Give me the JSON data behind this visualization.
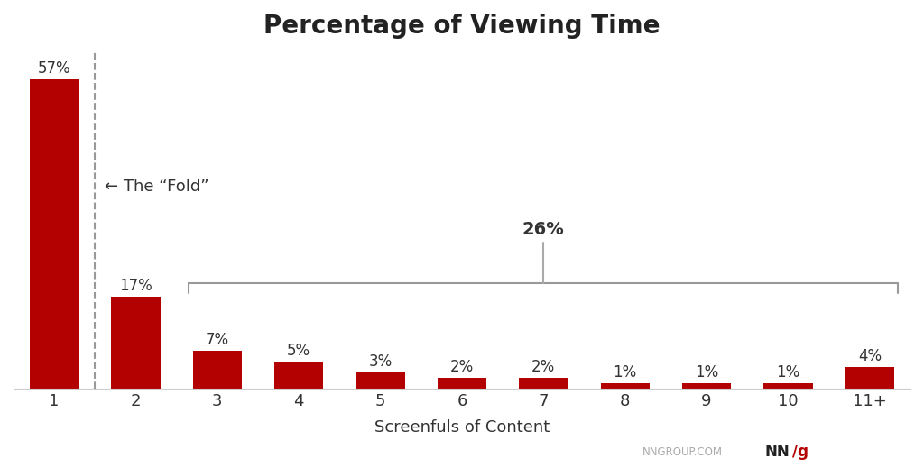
{
  "categories": [
    "1",
    "2",
    "3",
    "4",
    "5",
    "6",
    "7",
    "8",
    "9",
    "10",
    "11+"
  ],
  "values": [
    57,
    17,
    7,
    5,
    3,
    2,
    2,
    1,
    1,
    1,
    4
  ],
  "bar_color": "#b30000",
  "title": "Percentage of Viewing Time",
  "xlabel": "Screenfuls of Content",
  "ylim": [
    0,
    62
  ],
  "background_color": "#ffffff",
  "title_fontsize": 20,
  "label_fontsize": 12,
  "tick_fontsize": 13,
  "fold_text": "← The “Fold”",
  "bracket_label": "26%",
  "watermark_text1": "NNGROUP.COM",
  "watermark_text2": "NN",
  "watermark_text3": "/g"
}
